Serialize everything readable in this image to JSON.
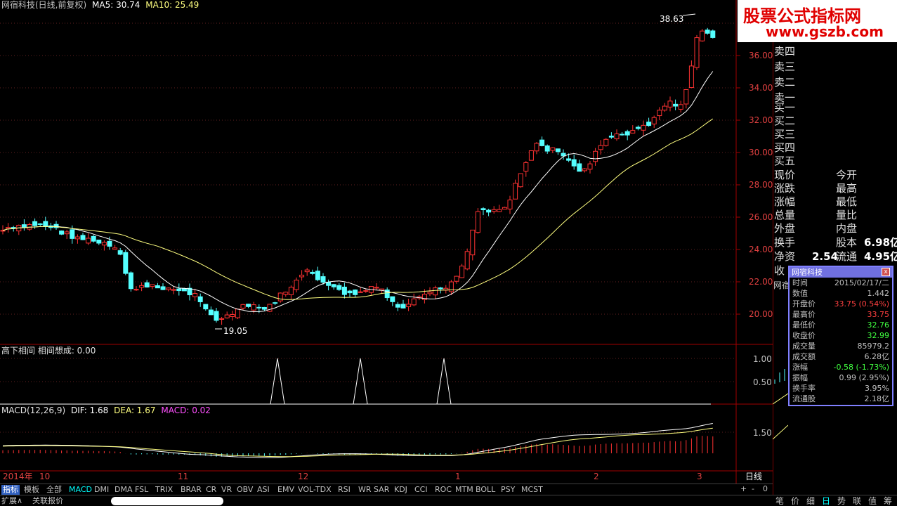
{
  "header": {
    "title": "网宿科技(日线,前复权)",
    "ma5": "MA5: 30.74",
    "ma10": "MA10: 25.49"
  },
  "logo": {
    "line1": "股票公式指标网",
    "line2": "www.gszb.com"
  },
  "price_axis": [
    "36.00",
    "34.00",
    "32.00",
    "30.00",
    "28.00",
    "26.00",
    "24.00",
    "22.00",
    "20.00"
  ],
  "annotations": {
    "high": "38.63",
    "low": "19.05"
  },
  "indicator1": {
    "label": "高下相间  相间想成: 0.00",
    "axis": [
      "1.00",
      "0.50"
    ]
  },
  "macd": {
    "label": "MACD(12,26,9)",
    "dif": "DIF: 1.68",
    "dea": "DEA: 1.67",
    "macd": "MACD: 0.02",
    "axis": "1.50"
  },
  "date_axis": {
    "year": "2014年",
    "labels": [
      "10",
      "11",
      "12",
      "1",
      "2",
      "3"
    ],
    "period": "日线"
  },
  "orderbook": {
    "sells": [
      "卖四",
      "卖三",
      "卖二",
      "卖一"
    ],
    "buys": [
      "买一",
      "买二",
      "买三",
      "买四",
      "买五"
    ]
  },
  "quote": {
    "rows": [
      {
        "l": "现价",
        "r": "今开"
      },
      {
        "l": "涨跌",
        "r": "最高"
      },
      {
        "l": "涨幅",
        "r": "最低"
      },
      {
        "l": "总量",
        "r": "量比"
      },
      {
        "l": "外盘",
        "r": "内盘"
      }
    ],
    "huanshou": "换手",
    "guben": "股本",
    "guben_v": "6.98亿",
    "jingzi": "净资",
    "jingzi_v": "2.54",
    "liutong": "流通",
    "liutong_v": "4.95亿",
    "shou": "收",
    "wangsu": "网宿"
  },
  "popup": {
    "title": "网宿科技",
    "close": "x",
    "rows": [
      {
        "k": "时间",
        "v": "2015/02/17/二",
        "c": "#c0c0c0"
      },
      {
        "k": "数值",
        "v": "1.442",
        "c": "#c0c0c0"
      },
      {
        "k": "开盘价",
        "v": "33.75 (0.54%)",
        "c": "#ff4040"
      },
      {
        "k": "最高价",
        "v": "33.75",
        "c": "#ff4040"
      },
      {
        "k": "最低价",
        "v": "32.76",
        "c": "#40ff40"
      },
      {
        "k": "收盘价",
        "v": "32.99",
        "c": "#40ff40"
      },
      {
        "k": "成交量",
        "v": "85979.2",
        "c": "#c0c0c0"
      },
      {
        "k": "成交额",
        "v": "6.28亿",
        "c": "#c0c0c0"
      },
      {
        "k": "涨幅",
        "v": "-0.58 (-1.73%)",
        "c": "#40ff40"
      },
      {
        "k": "振幅",
        "v": "0.99 (2.95%)",
        "c": "#c0c0c0"
      },
      {
        "k": "换手率",
        "v": "3.95%",
        "c": "#c0c0c0"
      },
      {
        "k": "流通股",
        "v": "2.18亿",
        "c": "#c0c0c0"
      }
    ]
  },
  "tabs": [
    "指标",
    "模板",
    "全部",
    "MACD",
    "DMI",
    "DMA",
    "FSL",
    "TRIX",
    "BRAR",
    "CR",
    "VR",
    "OBV",
    "ASI",
    "EMV",
    "VOL-TDX",
    "RSI",
    "WR",
    "SAR",
    "KDJ",
    "CCI",
    "ROC",
    "MTM",
    "BOLL",
    "PSY",
    "MCST"
  ],
  "zoom": [
    "+",
    "-",
    "0"
  ],
  "bottom_left": [
    "扩展∧",
    "关联报价"
  ],
  "bottom_right": [
    "笔",
    "价",
    "细",
    "日",
    "势",
    "联",
    "值",
    "筹"
  ],
  "colors": {
    "up": "#ff3232",
    "down": "#54ffff",
    "ma5": "#ffffff",
    "ma10": "#ffff80",
    "macd": "#ff50ff"
  }
}
